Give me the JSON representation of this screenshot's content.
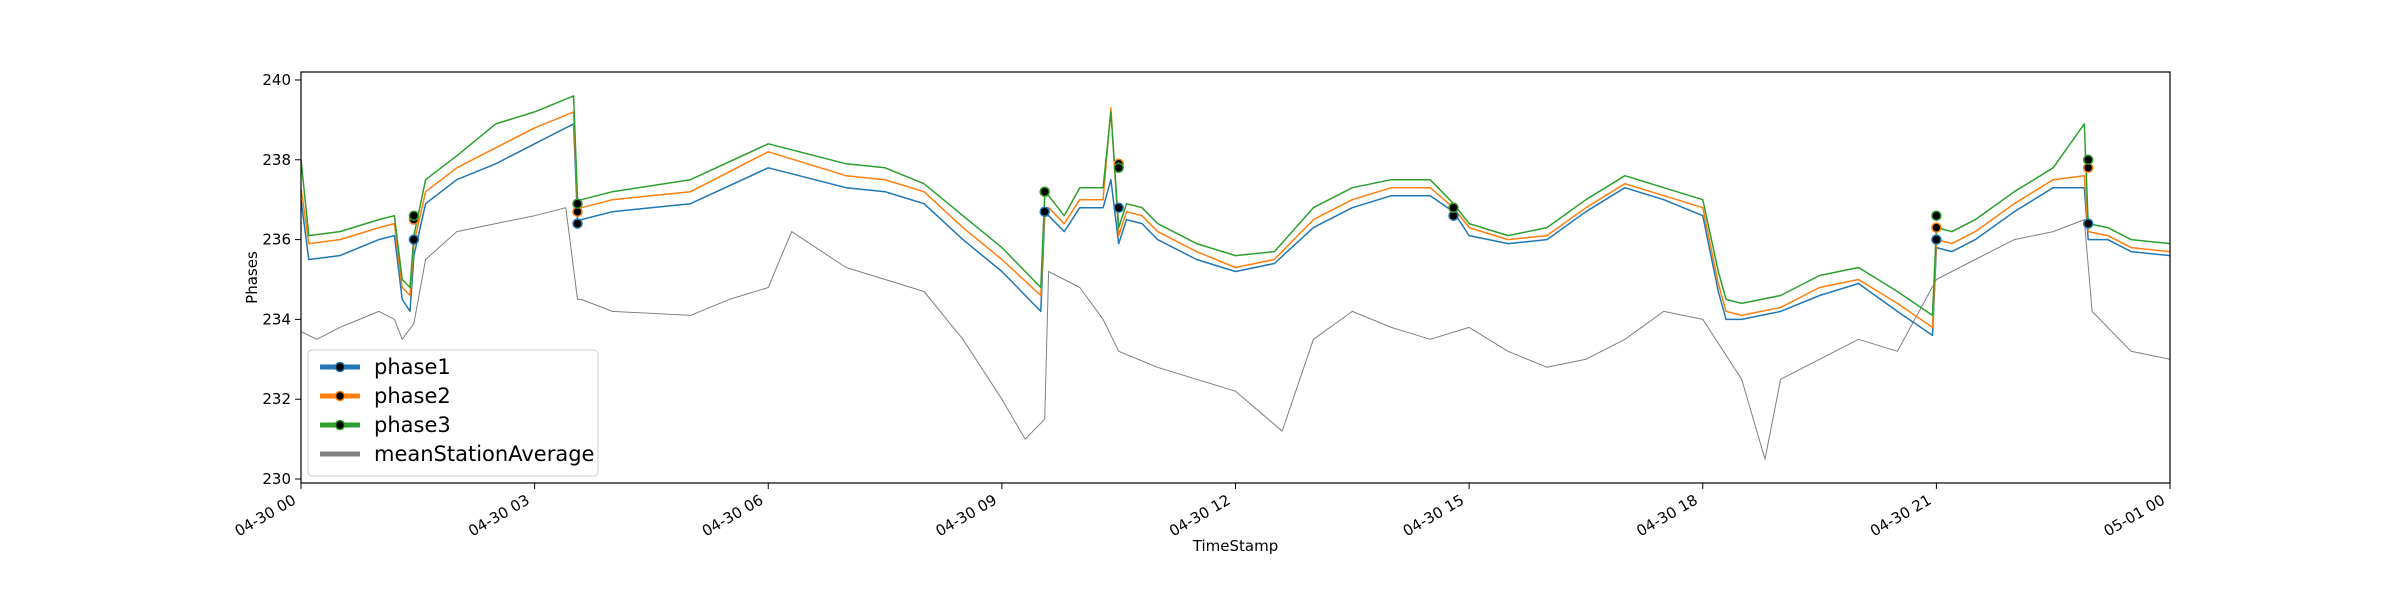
{
  "chart_data": {
    "type": "line",
    "xlabel": "TimeStamp",
    "ylabel": "Phases",
    "xlim": [
      0,
      24
    ],
    "ylim": [
      229.9,
      240.2
    ],
    "x_ticks": [
      {
        "value": 0,
        "label": "04-30 00"
      },
      {
        "value": 3,
        "label": "04-30 03"
      },
      {
        "value": 6,
        "label": "04-30 06"
      },
      {
        "value": 9,
        "label": "04-30 09"
      },
      {
        "value": 12,
        "label": "04-30 12"
      },
      {
        "value": 15,
        "label": "04-30 15"
      },
      {
        "value": 18,
        "label": "04-30 18"
      },
      {
        "value": 21,
        "label": "04-30 21"
      },
      {
        "value": 24,
        "label": "05-01 00"
      }
    ],
    "y_ticks": [
      {
        "value": 230,
        "label": "230"
      },
      {
        "value": 232,
        "label": "232"
      },
      {
        "value": 234,
        "label": "234"
      },
      {
        "value": 236,
        "label": "236"
      },
      {
        "value": 238,
        "label": "238"
      },
      {
        "value": 240,
        "label": "240"
      }
    ],
    "grid": false,
    "legend_position": "bottom-left",
    "x_unit": "hours since 04-30 00:00",
    "series": [
      {
        "name": "phase1",
        "color": "#1f77b4",
        "x": [
          0,
          0.1,
          0.5,
          1.0,
          1.2,
          1.3,
          1.4,
          1.45,
          1.6,
          2.0,
          2.5,
          3.0,
          3.5,
          3.55,
          3.6,
          4.0,
          5.0,
          6.0,
          7.0,
          7.5,
          8.0,
          8.5,
          9.0,
          9.5,
          9.55,
          9.6,
          9.8,
          10.0,
          10.3,
          10.4,
          10.5,
          10.6,
          10.8,
          11.0,
          11.5,
          12.0,
          12.5,
          13.0,
          13.5,
          14.0,
          14.5,
          14.8,
          15.0,
          15.5,
          16.0,
          16.5,
          17.0,
          17.5,
          18.0,
          18.2,
          18.3,
          18.5,
          19.0,
          19.5,
          20.0,
          20.5,
          20.95,
          21.0,
          21.2,
          21.5,
          22.0,
          22.5,
          22.9,
          22.95,
          23.2,
          23.5,
          24.0
        ],
        "y": [
          237.0,
          235.5,
          235.6,
          236.0,
          236.1,
          234.5,
          234.2,
          235.6,
          236.9,
          237.5,
          237.9,
          238.4,
          238.9,
          236.5,
          236.5,
          236.7,
          236.9,
          237.8,
          237.3,
          237.2,
          236.9,
          236.0,
          235.2,
          234.2,
          236.6,
          236.6,
          236.2,
          236.8,
          236.8,
          237.5,
          235.9,
          236.5,
          236.4,
          236.0,
          235.5,
          235.2,
          235.4,
          236.3,
          236.8,
          237.1,
          237.1,
          236.7,
          236.1,
          235.9,
          236.0,
          236.7,
          237.3,
          237.0,
          236.6,
          234.7,
          234.0,
          234.0,
          234.2,
          234.6,
          234.9,
          234.2,
          233.6,
          235.8,
          235.7,
          236.0,
          236.7,
          237.3,
          237.3,
          236.0,
          236.0,
          235.7,
          235.6
        ]
      },
      {
        "name": "phase2",
        "color": "#ff7f0e",
        "x": [
          0,
          0.1,
          0.5,
          1.0,
          1.2,
          1.3,
          1.4,
          1.45,
          1.6,
          2.0,
          2.5,
          3.0,
          3.5,
          3.55,
          3.6,
          4.0,
          5.0,
          6.0,
          7.0,
          7.5,
          8.0,
          8.5,
          9.0,
          9.5,
          9.55,
          9.6,
          9.8,
          10.0,
          10.3,
          10.4,
          10.5,
          10.6,
          10.8,
          11.0,
          11.5,
          12.0,
          12.5,
          13.0,
          13.5,
          14.0,
          14.5,
          14.8,
          15.0,
          15.5,
          16.0,
          16.5,
          17.0,
          17.5,
          18.0,
          18.2,
          18.3,
          18.5,
          19.0,
          19.5,
          20.0,
          20.5,
          20.95,
          21.0,
          21.2,
          21.5,
          22.0,
          22.5,
          22.9,
          22.95,
          23.2,
          23.5,
          24.0
        ],
        "y": [
          237.3,
          235.9,
          236.0,
          236.3,
          236.4,
          234.8,
          234.6,
          235.9,
          237.2,
          237.8,
          238.3,
          238.8,
          239.2,
          236.8,
          236.8,
          237.0,
          237.2,
          238.2,
          237.6,
          237.5,
          237.2,
          236.3,
          235.5,
          234.6,
          236.8,
          236.8,
          236.4,
          237.0,
          237.0,
          239.3,
          236.1,
          236.7,
          236.6,
          236.2,
          235.7,
          235.3,
          235.5,
          236.5,
          237.0,
          237.3,
          237.3,
          236.8,
          236.3,
          236.0,
          236.1,
          236.8,
          237.4,
          237.1,
          236.8,
          234.9,
          234.2,
          234.1,
          234.3,
          234.8,
          235.0,
          234.4,
          233.8,
          236.0,
          235.9,
          236.2,
          236.9,
          237.5,
          237.6,
          236.2,
          236.1,
          235.8,
          235.7
        ]
      },
      {
        "name": "phase3",
        "color": "#2ca02c",
        "x": [
          0,
          0.1,
          0.5,
          1.0,
          1.2,
          1.3,
          1.4,
          1.45,
          1.6,
          2.0,
          2.5,
          3.0,
          3.5,
          3.55,
          3.6,
          4.0,
          5.0,
          6.0,
          7.0,
          7.5,
          8.0,
          8.5,
          9.0,
          9.5,
          9.55,
          9.6,
          9.8,
          10.0,
          10.3,
          10.4,
          10.5,
          10.6,
          10.8,
          11.0,
          11.5,
          12.0,
          12.5,
          13.0,
          13.5,
          14.0,
          14.5,
          14.8,
          15.0,
          15.5,
          16.0,
          16.5,
          17.0,
          17.5,
          18.0,
          18.2,
          18.3,
          18.5,
          19.0,
          19.5,
          20.0,
          20.5,
          20.95,
          21.0,
          21.2,
          21.5,
          22.0,
          22.5,
          22.9,
          22.95,
          23.2,
          23.5,
          24.0
        ],
        "y": [
          238.0,
          236.1,
          236.2,
          236.5,
          236.6,
          235.0,
          234.8,
          236.1,
          237.5,
          238.1,
          238.9,
          239.2,
          239.6,
          237.0,
          237.0,
          237.2,
          237.5,
          238.4,
          237.9,
          237.8,
          237.4,
          236.6,
          235.8,
          234.8,
          237.1,
          237.1,
          236.6,
          237.3,
          237.3,
          239.2,
          236.3,
          236.9,
          236.8,
          236.4,
          235.9,
          235.6,
          235.7,
          236.8,
          237.3,
          237.5,
          237.5,
          236.9,
          236.4,
          236.1,
          236.3,
          237.0,
          237.6,
          237.3,
          237.0,
          235.2,
          234.5,
          234.4,
          234.6,
          235.1,
          235.3,
          234.7,
          234.1,
          236.3,
          236.2,
          236.5,
          237.2,
          237.8,
          238.9,
          236.4,
          236.3,
          236.0,
          235.9
        ]
      },
      {
        "name": "meanStationAverage",
        "color": "#808080",
        "x": [
          0,
          0.2,
          0.5,
          1.0,
          1.2,
          1.3,
          1.45,
          1.6,
          2.0,
          2.5,
          3.0,
          3.4,
          3.55,
          3.6,
          4.0,
          5.0,
          5.5,
          6.0,
          6.3,
          7.0,
          7.5,
          8.0,
          8.5,
          9.0,
          9.3,
          9.55,
          9.6,
          10.0,
          10.3,
          10.5,
          11.0,
          11.5,
          12.0,
          12.6,
          13.0,
          13.5,
          14.0,
          14.5,
          15.0,
          15.5,
          16.0,
          16.5,
          17.0,
          17.5,
          18.0,
          18.5,
          18.8,
          19.0,
          19.5,
          20.0,
          20.5,
          21.0,
          21.5,
          22.0,
          22.5,
          22.9,
          23.0,
          23.2,
          23.5,
          24.0
        ],
        "y": [
          233.7,
          233.5,
          233.8,
          234.2,
          234.0,
          233.5,
          233.9,
          235.5,
          236.2,
          236.4,
          236.6,
          236.8,
          234.5,
          234.5,
          234.2,
          234.1,
          234.5,
          234.8,
          236.2,
          235.3,
          235.0,
          234.7,
          233.5,
          232.0,
          231.0,
          231.5,
          235.2,
          234.8,
          234.0,
          233.2,
          232.8,
          232.5,
          232.2,
          231.2,
          233.5,
          234.2,
          233.8,
          233.5,
          233.8,
          233.2,
          232.8,
          233.0,
          233.5,
          234.2,
          234.0,
          232.5,
          230.5,
          232.5,
          233.0,
          233.5,
          233.2,
          235.0,
          235.5,
          236.0,
          236.2,
          236.5,
          234.2,
          233.8,
          233.2,
          233.0
        ]
      }
    ],
    "markers": [
      {
        "series": "phase1",
        "x": [
          1.45,
          3.55,
          9.55,
          10.5,
          14.8,
          21.0,
          22.95
        ],
        "y": [
          236.0,
          236.4,
          236.7,
          236.8,
          236.6,
          236.0,
          236.4
        ]
      },
      {
        "series": "phase2",
        "x": [
          1.45,
          3.55,
          9.55,
          10.5,
          14.8,
          21.0,
          22.95
        ],
        "y": [
          236.5,
          236.7,
          237.2,
          237.9,
          236.8,
          236.3,
          237.8
        ]
      },
      {
        "series": "phase3",
        "x": [
          1.45,
          3.55,
          9.55,
          10.5,
          14.8,
          21.0,
          22.95
        ],
        "y": [
          236.6,
          236.9,
          237.2,
          237.8,
          236.8,
          236.6,
          238.0
        ]
      }
    ],
    "legend": [
      {
        "name": "phase1",
        "color": "#1f77b4",
        "marker": true
      },
      {
        "name": "phase2",
        "color": "#ff7f0e",
        "marker": true
      },
      {
        "name": "phase3",
        "color": "#2ca02c",
        "marker": true
      },
      {
        "name": "meanStationAverage",
        "color": "#808080",
        "marker": false
      }
    ]
  }
}
